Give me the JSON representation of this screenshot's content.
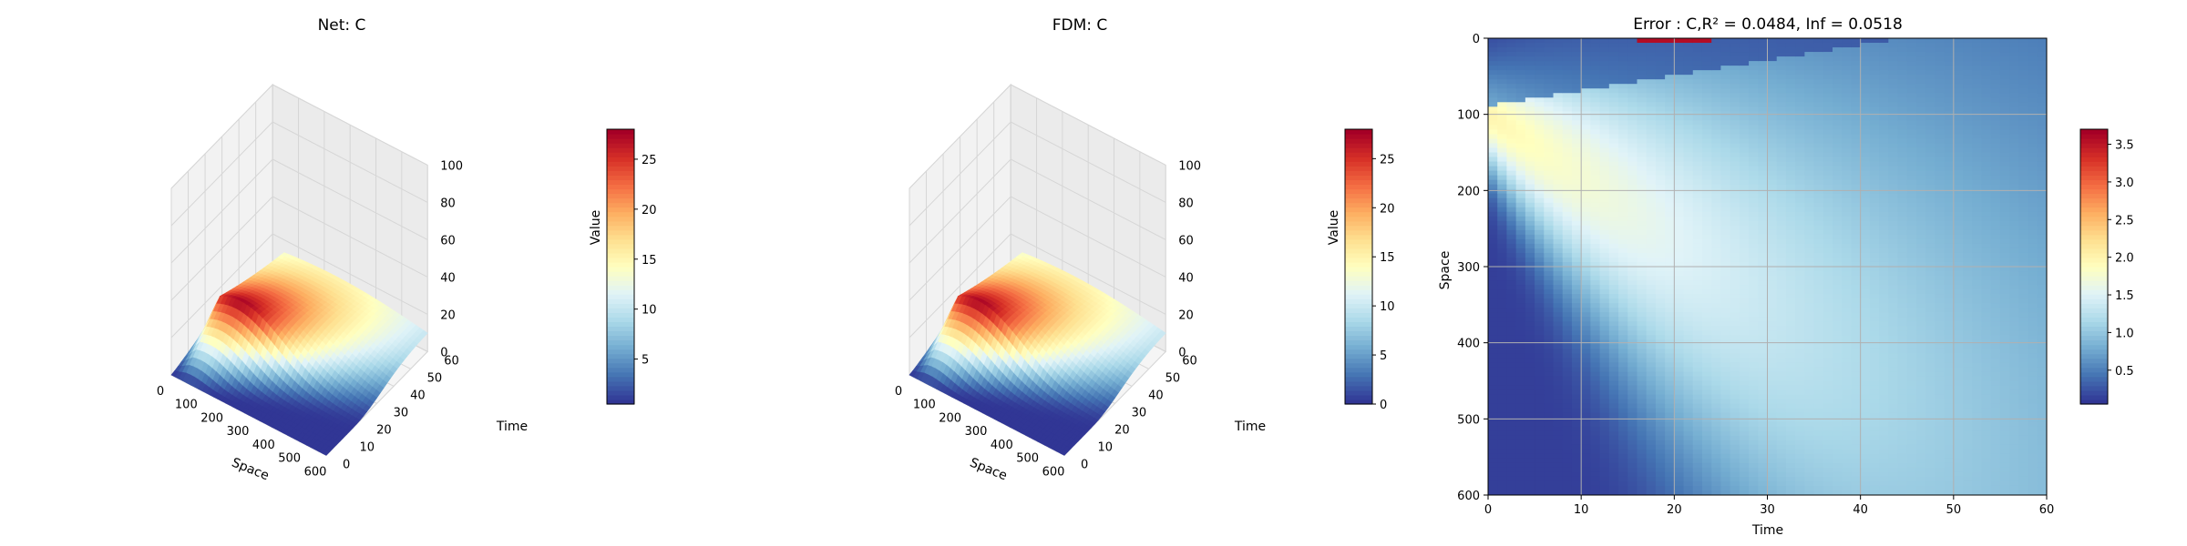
{
  "chart_data": [
    {
      "type": "surface3d",
      "title": "Net: C",
      "xlabel": "Space",
      "ylabel": "Time",
      "zlabel": "Value",
      "xlim": [
        0,
        600
      ],
      "ylim": [
        0,
        60
      ],
      "zlim": [
        0,
        100
      ],
      "x_ticks": [
        "0",
        "100",
        "200",
        "300",
        "400",
        "500",
        "600"
      ],
      "y_ticks": [
        "0",
        "10",
        "20",
        "30",
        "40",
        "50",
        "60"
      ],
      "z_ticks": [
        "0",
        "20",
        "40",
        "60",
        "80",
        "100"
      ],
      "colormap": "RdYlBu_r",
      "peak_value": 28,
      "peak_location": {
        "space": 100,
        "time": 20
      },
      "colorbar": {
        "ticks": [
          "5",
          "10",
          "15",
          "20",
          "25"
        ],
        "min": 0.5,
        "max": 28
      }
    },
    {
      "type": "surface3d",
      "title": "FDM: C",
      "xlabel": "Space",
      "ylabel": "Time",
      "zlabel": "Value",
      "xlim": [
        0,
        600
      ],
      "ylim": [
        0,
        60
      ],
      "zlim": [
        0,
        100
      ],
      "x_ticks": [
        "0",
        "100",
        "200",
        "300",
        "400",
        "500",
        "600"
      ],
      "y_ticks": [
        "0",
        "10",
        "20",
        "30",
        "40",
        "50",
        "60"
      ],
      "z_ticks": [
        "0",
        "20",
        "40",
        "60",
        "80",
        "100"
      ],
      "colormap": "RdYlBu_r",
      "peak_value": 28,
      "peak_location": {
        "space": 100,
        "time": 20
      },
      "colorbar": {
        "ticks": [
          "0",
          "5",
          "10",
          "15",
          "20",
          "25"
        ],
        "min": 0,
        "max": 28
      }
    },
    {
      "type": "heatmap",
      "title": "Error : C,R² = 0.0484, Inf = 0.0518",
      "xlabel": "Time",
      "ylabel": "Space",
      "xlim": [
        0,
        60
      ],
      "ylim": [
        600,
        0
      ],
      "x_ticks": [
        "0",
        "10",
        "20",
        "30",
        "40",
        "50",
        "60"
      ],
      "y_ticks": [
        "0",
        "100",
        "200",
        "300",
        "400",
        "500",
        "600"
      ],
      "grid": true,
      "colormap": "RdYlBu_r",
      "colorbar": {
        "ticks": [
          "0.5",
          "1.0",
          "1.5",
          "2.0",
          "2.5",
          "3.0",
          "3.5"
        ],
        "min": 0.05,
        "max": 3.7
      }
    }
  ]
}
